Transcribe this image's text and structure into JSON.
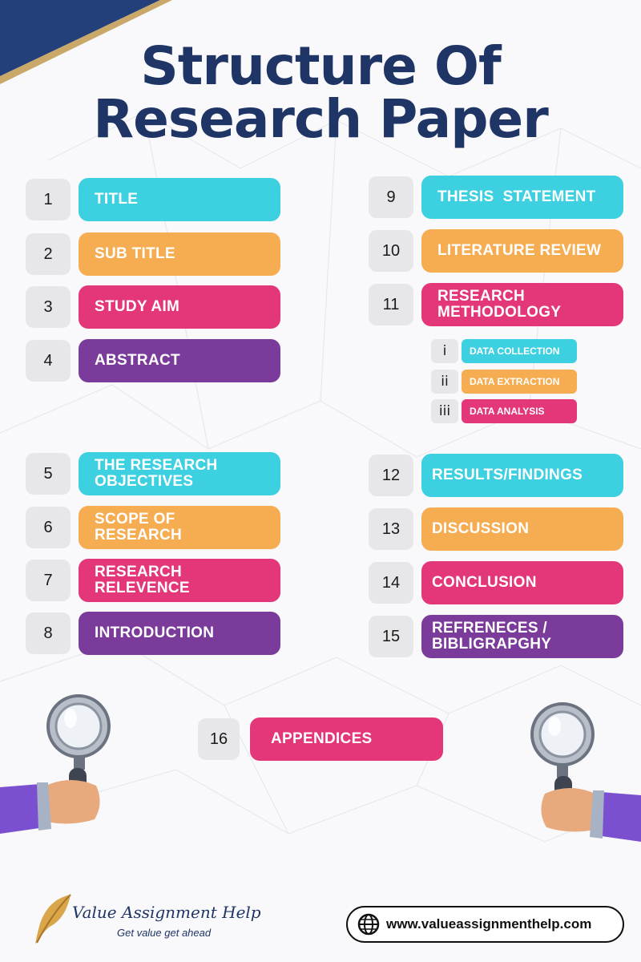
{
  "title": {
    "line1": "Structure Of",
    "line2": "Research Paper"
  },
  "colors": {
    "cyan": "#3dd0e0",
    "orange": "#f6ad52",
    "pink": "#e4377a",
    "purple": "#7b3b9a",
    "navy": "#1f3566"
  },
  "items": [
    {
      "num": "1",
      "label": "TITLE"
    },
    {
      "num": "2",
      "label": "SUB TITLE"
    },
    {
      "num": "3",
      "label": "STUDY AIM"
    },
    {
      "num": "4",
      "label": "ABSTRACT"
    },
    {
      "num": "5",
      "label": "THE RESEARCH OBJECTIVES"
    },
    {
      "num": "6",
      "label": "SCOPE OF RESEARCH"
    },
    {
      "num": "7",
      "label": "RESEARCH RELEVENCE"
    },
    {
      "num": "8",
      "label": "INTRODUCTION"
    },
    {
      "num": "9",
      "label": "THESIS  STATEMENT"
    },
    {
      "num": "10",
      "label": "LITERATURE REVIEW"
    },
    {
      "num": "11",
      "label": "RESEARCH METHODOLOGY"
    },
    {
      "num": "12",
      "label": "RESULTS/FINDINGS"
    },
    {
      "num": "13",
      "label": "DISCUSSION"
    },
    {
      "num": "14",
      "label": "CONCLUSION"
    },
    {
      "num": "15",
      "label": "REFRENECES / BIBLIGRAPGHY"
    },
    {
      "num": "16",
      "label": "APPENDICES"
    }
  ],
  "sub_items": [
    {
      "num": "i",
      "label": "DATA COLLECTION"
    },
    {
      "num": "ii",
      "label": "DATA EXTRACTION"
    },
    {
      "num": "iii",
      "label": "DATA ANALYSIS"
    }
  ],
  "icons": {
    "magnifier": "magnifying-glass-icon",
    "quill": "quill-logo-icon",
    "globe": "globe-icon"
  },
  "brand": {
    "name": "Value Assignment Help",
    "tagline": "Get value get ahead"
  },
  "website": "www.valueassignmenthelp.com"
}
